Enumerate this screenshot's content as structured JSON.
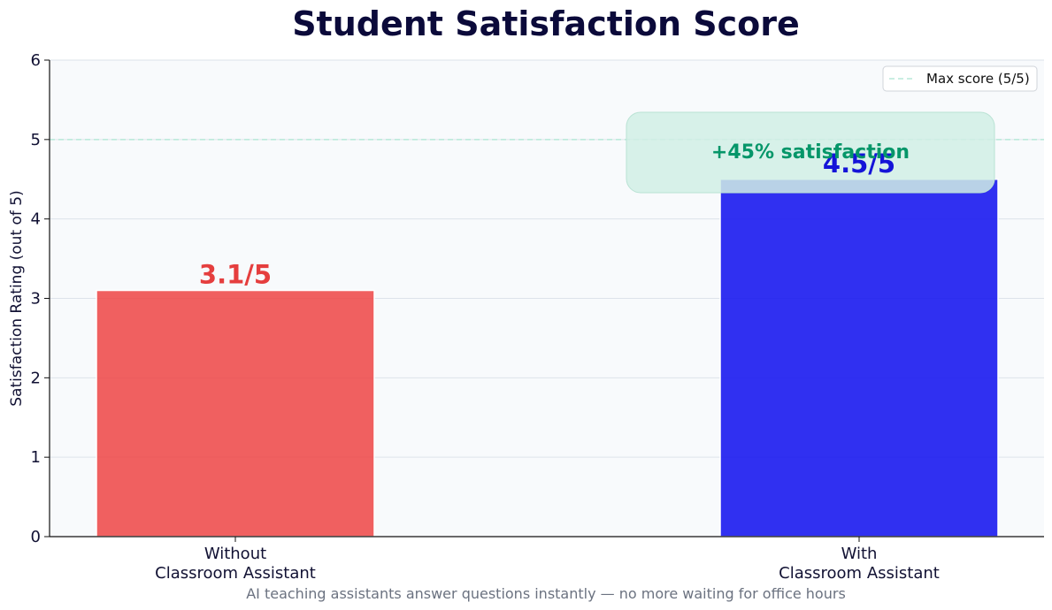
{
  "chart_data": {
    "type": "bar",
    "title": "Student Satisfaction Score",
    "ylabel": "Satisfaction Rating (out of 5)",
    "xlabel": "",
    "ylim": [
      0,
      6
    ],
    "yticks": [
      "0",
      "1",
      "2",
      "3",
      "4",
      "5",
      "6"
    ],
    "categories": [
      [
        "Without",
        "Classroom Assistant"
      ],
      [
        "With",
        "Classroom Assistant"
      ]
    ],
    "values": [
      3.1,
      4.5
    ],
    "value_labels": [
      "3.1/5",
      "4.5/5"
    ],
    "bar_colors": [
      "#ef4444",
      "#1a1aef"
    ],
    "reference_line": {
      "value": 5,
      "label": "Max score (5/5)",
      "color": "#b7e9d8"
    },
    "annotation": {
      "text": "+45% satisfaction",
      "color": "#059669",
      "box_color": "#d1eee5"
    },
    "subtitle": "AI teaching assistants answer questions instantly — no more waiting for office hours",
    "grid": true,
    "legend_position": "top-right",
    "plot_background": "#f8fafc"
  }
}
